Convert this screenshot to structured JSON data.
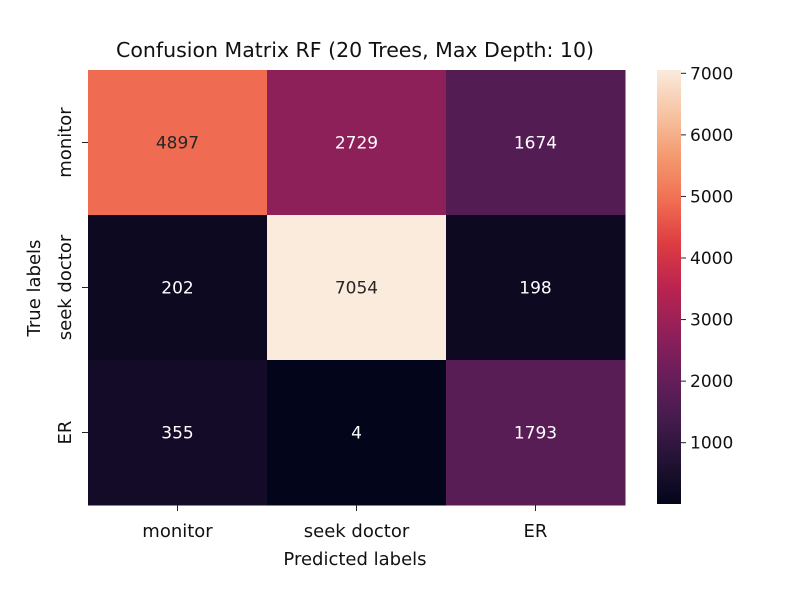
{
  "chart_data": {
    "type": "heatmap",
    "title": "Confusion Matrix RF (20 Trees, Max Depth: 10)",
    "xlabel": "Predicted labels",
    "ylabel": "True labels",
    "x_categories": [
      "monitor",
      "seek doctor",
      "ER"
    ],
    "y_categories": [
      "monitor",
      "seek doctor",
      "ER"
    ],
    "values": [
      [
        4897,
        2729,
        1674
      ],
      [
        202,
        7054,
        198
      ],
      [
        355,
        4,
        1793
      ]
    ],
    "colormap": "rocket",
    "colorbar": {
      "range": [
        4,
        7054
      ],
      "ticks": [
        1000,
        2000,
        3000,
        4000,
        5000,
        6000,
        7000
      ]
    },
    "annotations": true
  }
}
